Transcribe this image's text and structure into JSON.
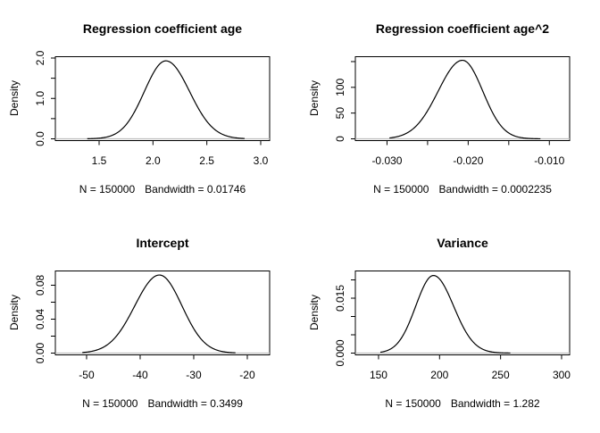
{
  "window": {
    "background": "#ffffff",
    "description": "R graphics device with 2x2 grid of kernel density plots"
  },
  "style": {
    "line_color": "#000000",
    "zero_line_color": "#bebebe",
    "text_color": "#000000"
  },
  "chart_data": [
    {
      "type": "line",
      "subtype": "density",
      "title": "Regression coefficient age",
      "ylabel": "Density",
      "xlabel_n": "N = 150000",
      "xlabel_bw": "Bandwidth = 0.01746",
      "n": 150000,
      "bandwidth": 0.01746,
      "grid": "off",
      "legend": "none",
      "x_domain": [
        1.094,
        3.083
      ],
      "y_top": 2.033,
      "x_ticks": [
        {
          "v": 1.5,
          "label": "1.5"
        },
        {
          "v": 2.0,
          "label": "2.0"
        },
        {
          "v": 2.5,
          "label": "2.5"
        },
        {
          "v": 3.0,
          "label": "3.0"
        }
      ],
      "y_ticks": [
        {
          "v": 0.0,
          "label": "0.0"
        },
        {
          "v": 0.5,
          "label": ""
        },
        {
          "v": 1.0,
          "label": "1.0"
        },
        {
          "v": 1.5,
          "label": ""
        },
        {
          "v": 2.0,
          "label": "2.0"
        }
      ],
      "curve": {
        "mean": 2.12,
        "sd_left": 0.2,
        "sd_right": 0.22,
        "peak": 1.93,
        "range": [
          1.39,
          2.85
        ]
      }
    },
    {
      "type": "line",
      "subtype": "density",
      "title": "Regression coefficient age^2",
      "ylabel": "Density",
      "xlabel_n": "N = 150000",
      "xlabel_bw": "Bandwidth = 0.0002235",
      "n": 150000,
      "bandwidth": 0.0002235,
      "grid": "off",
      "legend": "none",
      "x_domain": [
        -0.0339,
        -0.0075
      ],
      "y_top": 159.5,
      "x_ticks": [
        {
          "v": -0.03,
          "label": "-0.030"
        },
        {
          "v": -0.025,
          "label": ""
        },
        {
          "v": -0.02,
          "label": "-0.020"
        },
        {
          "v": -0.015,
          "label": ""
        },
        {
          "v": -0.01,
          "label": "-0.010"
        }
      ],
      "y_ticks": [
        {
          "v": 0,
          "label": "0"
        },
        {
          "v": 50,
          "label": "50"
        },
        {
          "v": 100,
          "label": "100"
        },
        {
          "v": 150,
          "label": ""
        }
      ],
      "curve": {
        "mean": -0.0207,
        "sd_left": 0.003,
        "sd_right": 0.0025,
        "peak": 152.5,
        "range": [
          -0.0297,
          -0.0111
        ]
      }
    },
    {
      "type": "line",
      "subtype": "density",
      "title": "Intercept",
      "ylabel": "Density",
      "xlabel_n": "N = 150000",
      "xlabel_bw": "Bandwidth = 0.3499",
      "n": 150000,
      "bandwidth": 0.3499,
      "grid": "off",
      "legend": "none",
      "x_domain": [
        -55.83,
        -15.83
      ],
      "y_top": 0.0968,
      "x_ticks": [
        {
          "v": -50,
          "label": "-50"
        },
        {
          "v": -40,
          "label": "-40"
        },
        {
          "v": -30,
          "label": "-30"
        },
        {
          "v": -20,
          "label": "-20"
        }
      ],
      "y_ticks": [
        {
          "v": 0.0,
          "label": "0.00"
        },
        {
          "v": 0.02,
          "label": ""
        },
        {
          "v": 0.04,
          "label": "0.04"
        },
        {
          "v": 0.06,
          "label": ""
        },
        {
          "v": 0.08,
          "label": "0.08"
        }
      ],
      "curve": {
        "mean": -36.4,
        "sd_left": 4.6,
        "sd_right": 4.2,
        "peak": 0.092,
        "range": [
          -50.8,
          -22.2
        ]
      }
    },
    {
      "type": "line",
      "subtype": "density",
      "title": "Variance",
      "ylabel": "Density",
      "xlabel_n": "N = 150000",
      "xlabel_bw": "Bandwidth = 1.282",
      "n": 150000,
      "bandwidth": 1.282,
      "grid": "off",
      "legend": "none",
      "x_domain": [
        131.0,
        306.6
      ],
      "y_top": 0.02244,
      "x_ticks": [
        {
          "v": 150,
          "label": "150"
        },
        {
          "v": 200,
          "label": "200"
        },
        {
          "v": 250,
          "label": "250"
        },
        {
          "v": 300,
          "label": "300"
        }
      ],
      "y_ticks": [
        {
          "v": 0.0,
          "label": "0.000"
        },
        {
          "v": 0.005,
          "label": ""
        },
        {
          "v": 0.01,
          "label": ""
        },
        {
          "v": 0.015,
          "label": "0.015"
        },
        {
          "v": 0.02,
          "label": ""
        }
      ],
      "curve": {
        "mean": 195,
        "sd_left": 14.5,
        "sd_right": 16.5,
        "peak": 0.0212,
        "range": [
          151.5,
          258
        ]
      }
    }
  ]
}
